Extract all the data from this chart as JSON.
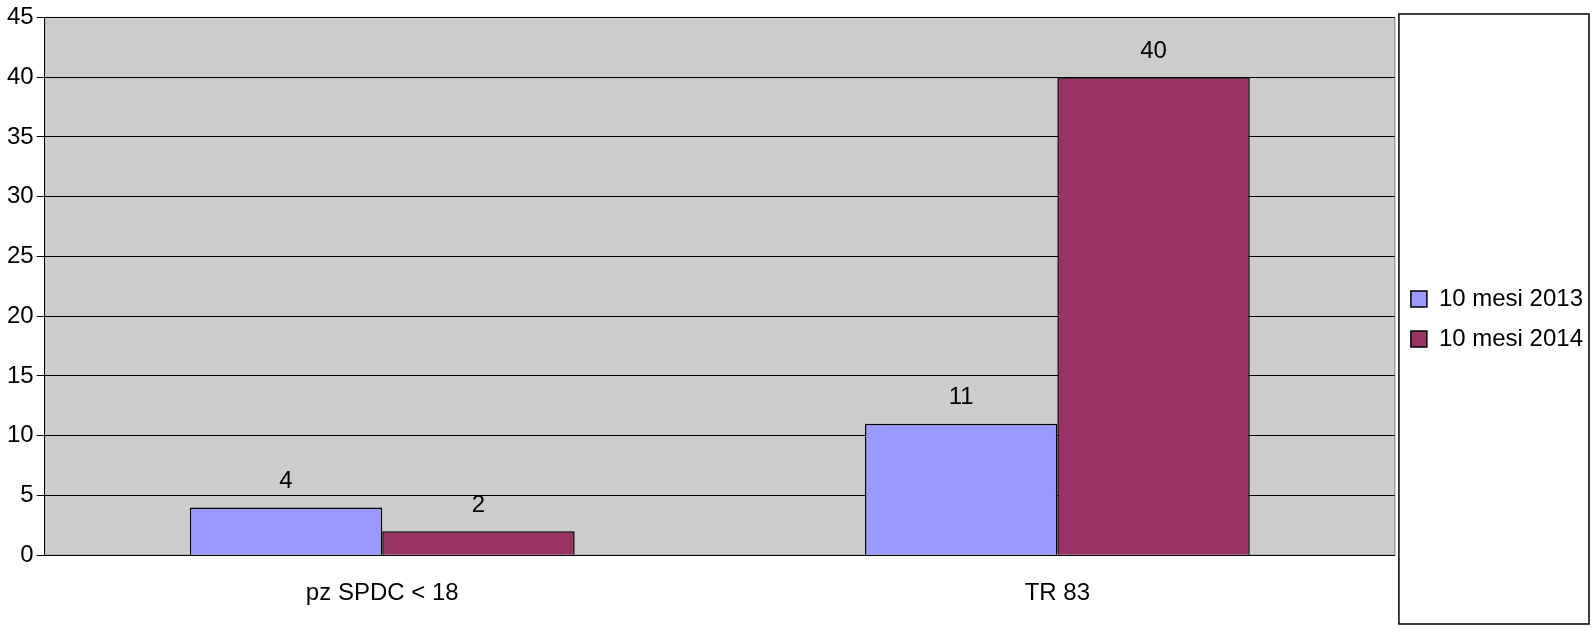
{
  "chart_data": {
    "type": "bar",
    "categories": [
      "pz SPDC < 18",
      "TR 83"
    ],
    "series": [
      {
        "name": "10 mesi 2013",
        "color": "#9999ff",
        "values": [
          4,
          11
        ]
      },
      {
        "name": "10 mesi 2014",
        "color": "#993366",
        "values": [
          2,
          40
        ]
      }
    ],
    "ylim": [
      0,
      45
    ],
    "yticks": [
      0,
      5,
      10,
      15,
      20,
      25,
      30,
      35,
      40,
      45
    ],
    "grid": "y",
    "legend": "right",
    "data_labels": true
  }
}
